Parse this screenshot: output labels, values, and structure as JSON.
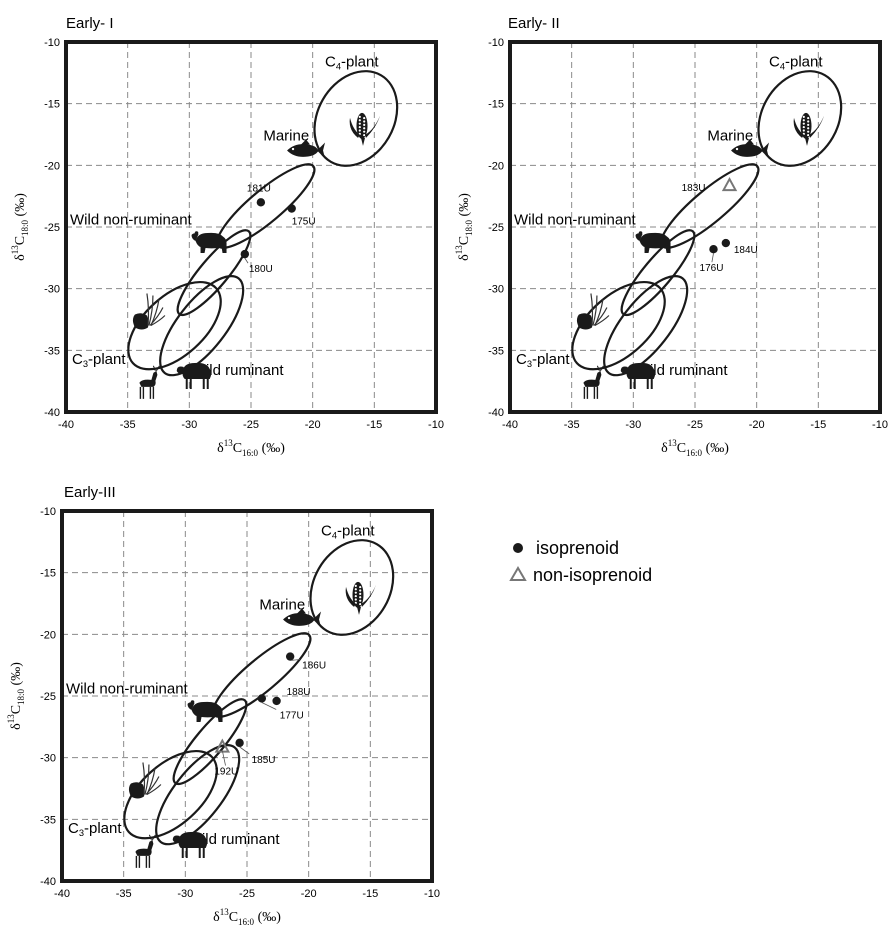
{
  "chart_data": [
    {
      "type": "scatter",
      "title": "Early- I",
      "xlabel": {
        "base": "δ",
        "sup": "13",
        "main": "C",
        "sub": "16:0",
        "unit": " (‰)"
      },
      "ylabel": {
        "base": "δ",
        "sup": "13",
        "main": "C",
        "sub": "18:0",
        "unit": " (‰)"
      },
      "xlim": [
        -40,
        -10
      ],
      "ylim": [
        -40,
        -10
      ],
      "xticks": [
        "-40",
        "-35",
        "-30",
        "-25",
        "-20",
        "-15",
        "-10"
      ],
      "yticks": [
        "-10",
        "-15",
        "-20",
        "-25",
        "-30",
        "-35",
        "-40"
      ],
      "grid": true,
      "region_labels": {
        "c4": "C",
        "c4_sub": "4",
        "c4_rest": "-plant",
        "marine": "Marine",
        "wnr": "Wild non-ruminant",
        "c3": "C",
        "c3_sub": "3",
        "c3_rest": "-plant",
        "wr": "Wild ruminant"
      },
      "points": [
        {
          "label": "181U",
          "x": -24.2,
          "y": -23.0,
          "type": "isoprenoid"
        },
        {
          "label": "175U",
          "x": -21.7,
          "y": -23.5,
          "type": "isoprenoid"
        },
        {
          "label": "180U",
          "x": -25.5,
          "y": -27.2,
          "type": "isoprenoid"
        }
      ]
    },
    {
      "type": "scatter",
      "title": "Early- II",
      "xlabel": {
        "base": "δ",
        "sup": "13",
        "main": "C",
        "sub": "16:0",
        "unit": " (‰)"
      },
      "ylabel": {
        "base": "δ",
        "sup": "13",
        "main": "C",
        "sub": "18:0",
        "unit": " (‰)"
      },
      "xlim": [
        -40,
        -10
      ],
      "ylim": [
        -40,
        -10
      ],
      "xticks": [
        "-40",
        "-35",
        "-30",
        "-25",
        "-20",
        "-15",
        "-10"
      ],
      "yticks": [
        "-10",
        "-15",
        "-20",
        "-25",
        "-30",
        "-35",
        "-40"
      ],
      "grid": true,
      "region_labels": {
        "c4": "C",
        "c4_sub": "4",
        "c4_rest": "-plant",
        "marine": "Marine",
        "wnr": "Wild non-ruminant",
        "c3": "C",
        "c3_sub": "3",
        "c3_rest": "-plant",
        "wr": "Wild ruminant"
      },
      "points": [
        {
          "label": "183U",
          "x": -22.2,
          "y": -21.6,
          "type": "non-isoprenoid"
        },
        {
          "label": "184U",
          "x": -22.5,
          "y": -26.3,
          "type": "isoprenoid"
        },
        {
          "label": "176U",
          "x": -23.5,
          "y": -26.8,
          "type": "isoprenoid"
        }
      ]
    },
    {
      "type": "scatter",
      "title": "Early-III",
      "xlabel": {
        "base": "δ",
        "sup": "13",
        "main": "C",
        "sub": "16:0",
        "unit": " (‰)"
      },
      "ylabel": {
        "base": "δ",
        "sup": "13",
        "main": "C",
        "sub": "18:0",
        "unit": " (‰)"
      },
      "xlim": [
        -40,
        -10
      ],
      "ylim": [
        -40,
        -10
      ],
      "xticks": [
        "-40",
        "-35",
        "-30",
        "-25",
        "-20",
        "-15",
        "-10"
      ],
      "yticks": [
        "-10",
        "-15",
        "-20",
        "-25",
        "-30",
        "-35",
        "-40"
      ],
      "grid": true,
      "region_labels": {
        "c4": "C",
        "c4_sub": "4",
        "c4_rest": "-plant",
        "marine": "Marine",
        "wnr": "Wild non-ruminant",
        "c3": "C",
        "c3_sub": "3",
        "c3_rest": "-plant",
        "wr": "Wild ruminant"
      },
      "points": [
        {
          "label": "186U",
          "x": -21.5,
          "y": -21.8,
          "type": "isoprenoid"
        },
        {
          "label": "188U",
          "x": -22.6,
          "y": -25.4,
          "type": "isoprenoid"
        },
        {
          "label": "177U",
          "x": -23.8,
          "y": -25.2,
          "type": "isoprenoid"
        },
        {
          "label": "185U",
          "x": -25.6,
          "y": -28.8,
          "type": "isoprenoid"
        },
        {
          "label": "192U",
          "x": -27.0,
          "y": -29.1,
          "type": "non-isoprenoid"
        }
      ]
    }
  ],
  "legend": {
    "items": [
      {
        "label": "isoprenoid",
        "marker": "filled-circle"
      },
      {
        "label": "non-isoprenoid",
        "marker": "open-triangle"
      }
    ],
    "placement": "right"
  },
  "icons": [
    "maize-icon",
    "fish-icon",
    "bear-icon",
    "plant-icon",
    "deer-icon",
    "sheep-icon"
  ],
  "colors": {
    "frame": "#1a1a1a",
    "grid": "#8a8a8a",
    "point": "#1a1a1a",
    "triangle": "#777777"
  }
}
